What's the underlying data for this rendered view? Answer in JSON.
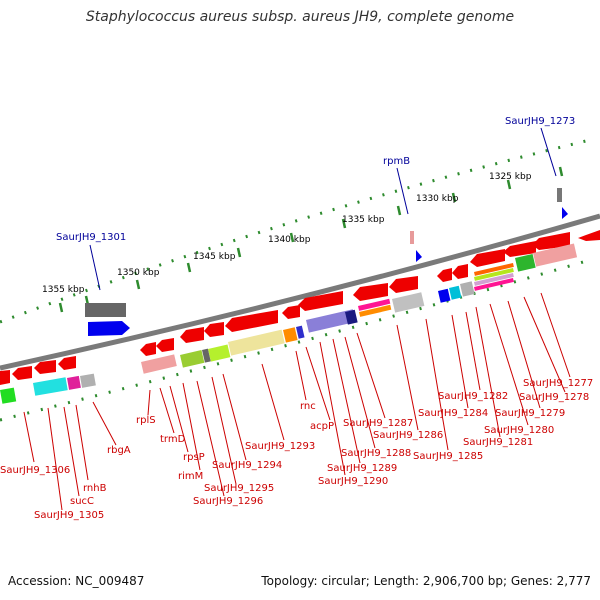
{
  "title": "Staphylococcus aureus subsp. aureus JH9, complete genome",
  "footer": {
    "accession": "Accession: NC_009487",
    "topology": "Topology: circular; Length: 2,906,700 bp; Genes: 2,777"
  },
  "ruler": {
    "ticks": [
      "1325 kbp",
      "1330 kbp",
      "1335 kbp",
      "1340 kbp",
      "1345 kbp",
      "1350 kbp",
      "1355 kbp"
    ]
  },
  "outer_labels": [
    "SaurJH9_1273",
    "rpmB",
    "SaurJH9_1301"
  ],
  "inner_labels": [
    "SaurJH9_1277",
    "SaurJH9_1278",
    "SaurJH9_1279",
    "SaurJH9_1280",
    "SaurJH9_1281",
    "SaurJH9_1282",
    "SaurJH9_1284",
    "SaurJH9_1285",
    "SaurJH9_1286",
    "SaurJH9_1287",
    "SaurJH9_1288",
    "SaurJH9_1289",
    "SaurJH9_1290",
    "acpP",
    "rnc",
    "SaurJH9_1293",
    "SaurJH9_1294",
    "SaurJH9_1295",
    "SaurJH9_1296",
    "rimM",
    "rpsP",
    "trmD",
    "rplS",
    "rbgA",
    "rnhB",
    "sucC",
    "SaurJH9_1305",
    "SaurJH9_1306"
  ],
  "colors": {
    "backbone": "#7a7a7a",
    "gene_arrow": "#ff0000",
    "inner_label": "#cc0000",
    "outer_label": "#000099",
    "tick": "#2e8b2e"
  }
}
